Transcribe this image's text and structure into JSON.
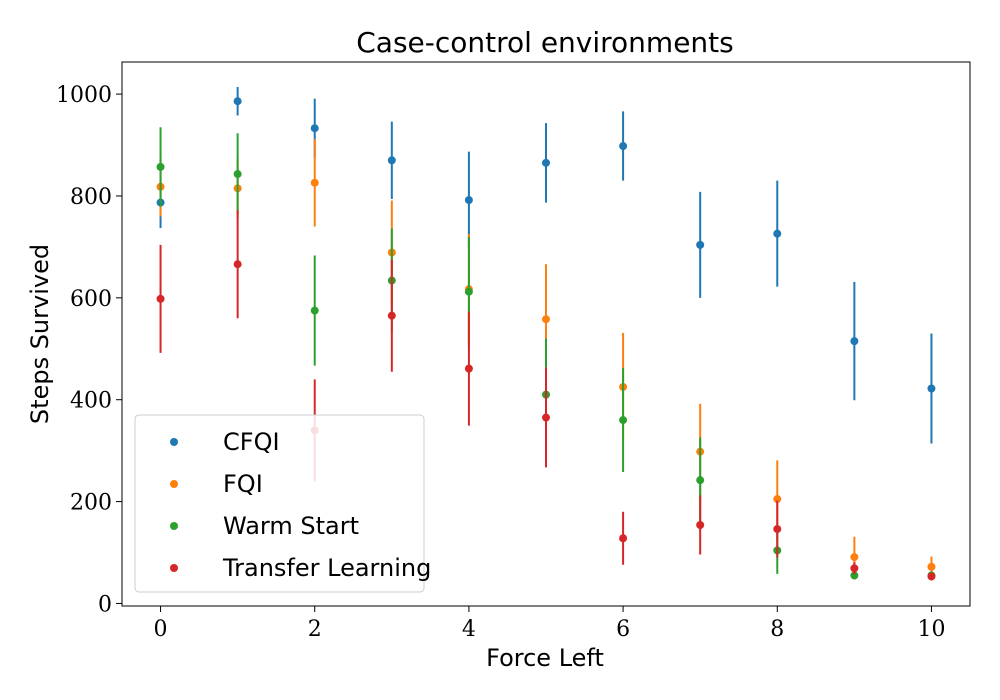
{
  "chart_data": {
    "type": "scatter",
    "title": "Case-control environments",
    "xlabel": "Force Left",
    "ylabel": "Steps Survived",
    "xlim": [
      -0.5,
      10.5
    ],
    "ylim": [
      -5,
      1063
    ],
    "xticks": [
      0,
      2,
      4,
      6,
      8,
      10
    ],
    "yticks": [
      0,
      200,
      400,
      600,
      800,
      1000
    ],
    "grid": false,
    "legend_position": "lower-left",
    "series": [
      {
        "name": "CFQI",
        "color": "#1f77b4",
        "x": [
          0,
          1,
          2,
          3,
          4,
          5,
          6,
          7,
          8,
          9,
          10
        ],
        "y": [
          787,
          986,
          933,
          870,
          792,
          865,
          898,
          704,
          726,
          515,
          422
        ],
        "err": [
          50,
          28,
          58,
          76,
          95,
          78,
          68,
          104,
          104,
          116,
          108
        ]
      },
      {
        "name": "FQI",
        "color": "#ff7f0e",
        "x": [
          0,
          1,
          2,
          3,
          4,
          5,
          6,
          7,
          8,
          9,
          10
        ],
        "y": [
          818,
          815,
          826,
          689,
          617,
          558,
          425,
          298,
          205,
          91,
          72
        ],
        "err": [
          58,
          58,
          86,
          102,
          108,
          108,
          106,
          94,
          76,
          40,
          20
        ]
      },
      {
        "name": "Warm Start",
        "color": "#2ca02c",
        "x": [
          0,
          1,
          2,
          3,
          4,
          5,
          6,
          7,
          8,
          9,
          10
        ],
        "y": [
          857,
          843,
          575,
          634,
          612,
          410,
          360,
          242,
          104,
          55,
          55
        ],
        "err": [
          78,
          80,
          108,
          102,
          108,
          110,
          102,
          84,
          46,
          8,
          8
        ]
      },
      {
        "name": "Transfer Learning",
        "color": "#d62728",
        "x": [
          0,
          1,
          2,
          3,
          4,
          5,
          6,
          7,
          8,
          9,
          10
        ],
        "y": [
          598,
          666,
          340,
          565,
          461,
          365,
          128,
          154,
          146,
          69,
          53
        ],
        "err": [
          106,
          106,
          100,
          110,
          112,
          98,
          52,
          58,
          56,
          12,
          8
        ]
      }
    ]
  }
}
